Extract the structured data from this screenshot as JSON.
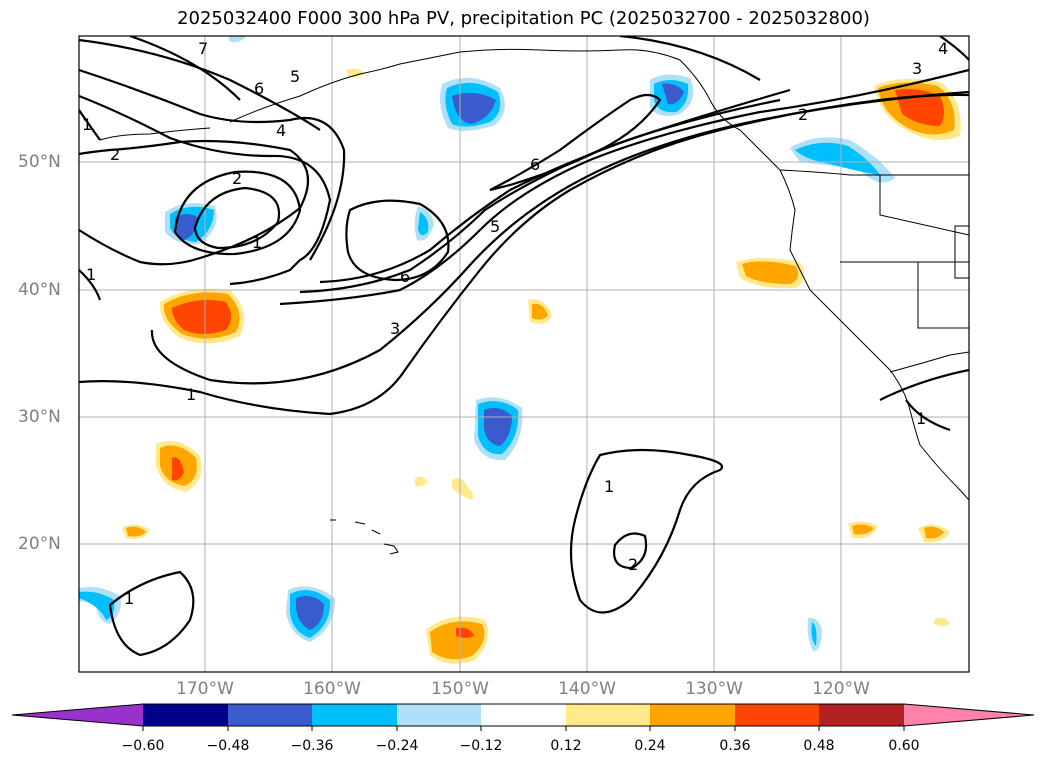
{
  "title": "2025032400 F000 300 hPa PV, precipitation PC (2025032700 - 2025032800)",
  "map": {
    "region": "North Pacific / US West Coast",
    "lat_labels": [
      {
        "text": "50°N",
        "lat": 50
      },
      {
        "text": "40°N",
        "lat": 40
      },
      {
        "text": "30°N",
        "lat": 30
      },
      {
        "text": "20°N",
        "lat": 20
      }
    ],
    "lon_labels": [
      {
        "text": "170°W",
        "lon": -170
      },
      {
        "text": "160°W",
        "lon": -160
      },
      {
        "text": "150°W",
        "lon": -150
      },
      {
        "text": "140°W",
        "lon": -140
      },
      {
        "text": "130°W",
        "lon": -130
      },
      {
        "text": "120°W",
        "lon": -120
      }
    ],
    "contour_labels": [
      "7",
      "6",
      "5",
      "4",
      "2",
      "1",
      "2",
      "6",
      "5",
      "1",
      "1",
      "6",
      "3",
      "1",
      "2",
      "3",
      "4",
      "1",
      "2",
      "1",
      "1"
    ]
  },
  "colorbar": {
    "colors": [
      "#9932cc",
      "#00008b",
      "#3a5bcd",
      "#00bfff",
      "#aee0f8",
      "#ffffff",
      "#ffe98b",
      "#ffa500",
      "#ff4500",
      "#b22222",
      "#ff82a8"
    ],
    "labels": [
      "−0.60",
      "−0.48",
      "−0.36",
      "−0.24",
      "−0.12",
      "0.12",
      "0.24",
      "0.36",
      "0.48",
      "0.60"
    ]
  }
}
